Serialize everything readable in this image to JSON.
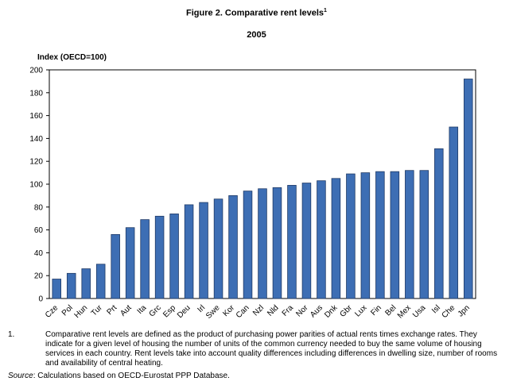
{
  "chart_data": {
    "type": "bar",
    "title": "Figure 2. Comparative rent levels",
    "title_superscript": "1",
    "subtitle": "2005",
    "ylabel": "Index (OECD=100)",
    "xlabel": "",
    "ylim": [
      0,
      200
    ],
    "yticks": [
      0,
      20,
      40,
      60,
      80,
      100,
      120,
      140,
      160,
      180,
      200
    ],
    "grid": false,
    "legend": "none",
    "bar_color": "#3d6eb4",
    "bar_edge_color": "#1f3a66",
    "categories": [
      "Cze",
      "Pol",
      "Hun",
      "Tur",
      "Prt",
      "Aut",
      "Ita",
      "Grc",
      "Esp",
      "Deu",
      "Irl",
      "Swe",
      "Kor",
      "Can",
      "Nzl",
      "Nld",
      "Fra",
      "Nor",
      "Aus",
      "Dnk",
      "Gbr",
      "Lux",
      "Fin",
      "Bel",
      "Mex",
      "Usa",
      "Isl",
      "Che",
      "Jpn"
    ],
    "values": [
      17,
      22,
      26,
      30,
      56,
      62,
      69,
      72,
      74,
      82,
      84,
      87,
      90,
      94,
      96,
      97,
      99,
      101,
      103,
      105,
      109,
      110,
      111,
      111,
      112,
      112,
      131,
      150,
      192
    ]
  },
  "footnote": {
    "number": "1.",
    "text": "Comparative rent levels are defined as the product of purchasing power parities of actual rents times exchange rates. They indicate for a given level of housing the number of units of the common currency needed to buy the same volume of housing services in each country. Rent levels take into account quality differences including differences in dwelling size, number of rooms and availability of central heating."
  },
  "source": {
    "label": "Source",
    "text": ": Calculations based on OECD-Eurostat PPP Database."
  }
}
